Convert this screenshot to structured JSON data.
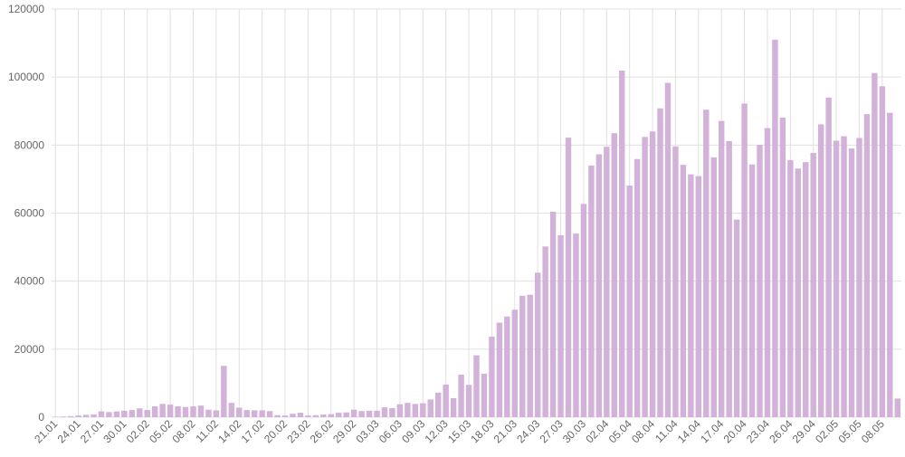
{
  "chart_data": {
    "type": "bar",
    "categories": [
      "21.01",
      null,
      null,
      "24.01",
      null,
      null,
      "27.01",
      null,
      null,
      "30.01",
      null,
      null,
      "02.02",
      null,
      null,
      "05.02",
      null,
      null,
      "08.02",
      null,
      null,
      "11.02",
      null,
      null,
      "14.02",
      null,
      null,
      "17.02",
      null,
      null,
      "20.02",
      null,
      null,
      "23.02",
      null,
      null,
      "26.02",
      null,
      null,
      "29.02",
      null,
      null,
      "03.03",
      null,
      null,
      "06.03",
      null,
      null,
      "09.03",
      null,
      null,
      "12.03",
      null,
      null,
      "15.03",
      null,
      null,
      "18.03",
      null,
      null,
      "21.03",
      null,
      null,
      "24.03",
      null,
      null,
      "27.03",
      null,
      null,
      "30.03",
      null,
      null,
      "02.04",
      null,
      null,
      "05.04",
      null,
      null,
      "08.04",
      null,
      null,
      "11.04",
      null,
      null,
      "14.04",
      null,
      null,
      "17.04",
      null,
      null,
      "20.04",
      null,
      null,
      "23.04",
      null,
      null,
      "26.04",
      null,
      null,
      "29.04",
      null,
      null,
      "02.05",
      null,
      null,
      "05.05",
      null,
      null,
      "08.05",
      null,
      null
    ],
    "values": [
      100,
      200,
      300,
      500,
      700,
      800,
      1700,
      1500,
      1700,
      1900,
      2100,
      2600,
      2100,
      3200,
      3900,
      3700,
      3200,
      3000,
      3200,
      3400,
      2200,
      2000,
      15100,
      4200,
      2800,
      2100,
      2000,
      2000,
      1800,
      600,
      500,
      1000,
      1300,
      500,
      600,
      800,
      900,
      1300,
      1400,
      2200,
      1800,
      1900,
      1900,
      2900,
      2700,
      3800,
      4200,
      3900,
      4100,
      5200,
      7200,
      9600,
      5600,
      12500,
      9500,
      18200,
      12800,
      23700,
      27800,
      29600,
      31600,
      35700,
      36000,
      42500,
      50200,
      60400,
      53500,
      82200,
      54000,
      62700,
      74000,
      77300,
      79500,
      83500,
      101900,
      68100,
      75900,
      82400,
      84000,
      90800,
      98300,
      79600,
      74200,
      71400,
      70900,
      90400,
      76400,
      87100,
      81200,
      58100,
      92200,
      74300,
      80100,
      85000,
      111000,
      88100,
      75600,
      73100,
      75000,
      77700,
      86100,
      94000,
      81300,
      82600,
      79000,
      82100,
      89100,
      101200,
      97300,
      89500,
      5500
    ],
    "color": "#d3b2d9",
    "ylim": [
      0,
      120000
    ],
    "yticks": [
      0,
      20000,
      40000,
      60000,
      80000,
      100000,
      120000
    ],
    "grid": true
  }
}
